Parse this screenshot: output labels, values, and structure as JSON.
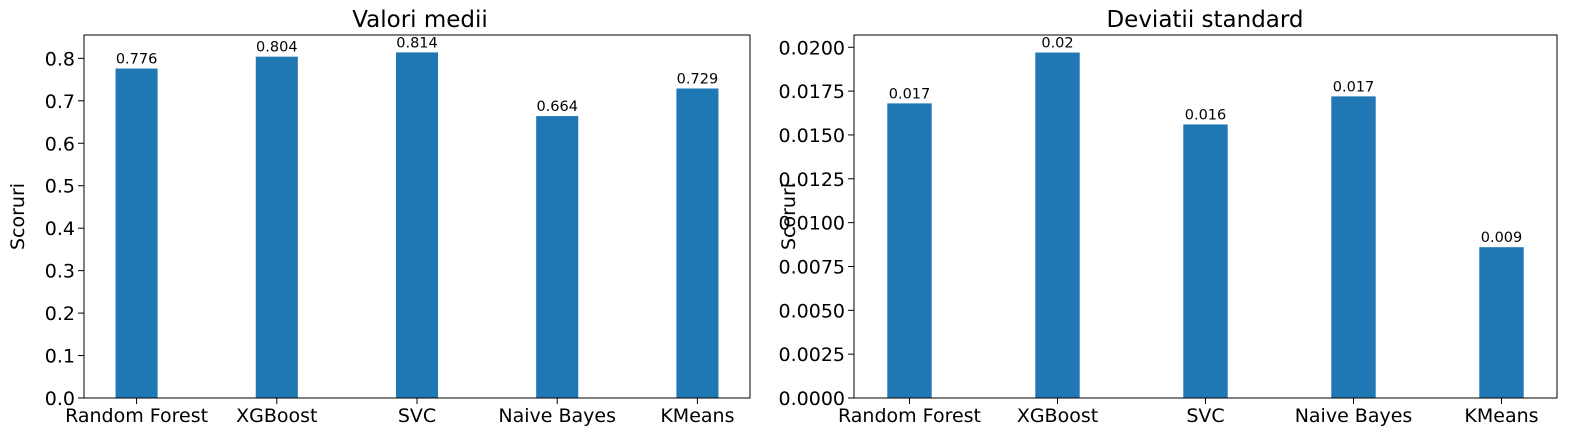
{
  "chart_data": [
    {
      "type": "bar",
      "title": "Valori medii",
      "xlabel": "",
      "ylabel": "Scoruri",
      "categories": [
        "Random Forest",
        "XGBoost",
        "SVC",
        "Naive Bayes",
        "KMeans"
      ],
      "values": [
        0.776,
        0.804,
        0.814,
        0.664,
        0.729
      ],
      "data_labels": [
        "0.776",
        "0.804",
        "0.814",
        "0.664",
        "0.729"
      ],
      "ylim": [
        0,
        0.855
      ],
      "yticks": [
        0.0,
        0.1,
        0.2,
        0.3,
        0.4,
        0.5,
        0.6,
        0.7,
        0.8
      ],
      "ytick_labels": [
        "0.0",
        "0.1",
        "0.2",
        "0.3",
        "0.4",
        "0.5",
        "0.6",
        "0.7",
        "0.8"
      ],
      "bar_color": "#1f77b4",
      "grid": false
    },
    {
      "type": "bar",
      "title": "Deviatii standard",
      "xlabel": "",
      "ylabel": "Scoruri",
      "categories": [
        "Random Forest",
        "XGBoost",
        "SVC",
        "Naive Bayes",
        "KMeans"
      ],
      "values": [
        0.0168,
        0.0197,
        0.0156,
        0.0172,
        0.0086
      ],
      "data_labels": [
        "0.017",
        "0.02",
        "0.016",
        "0.017",
        "0.009"
      ],
      "ylim": [
        0,
        0.0207
      ],
      "yticks": [
        0.0,
        0.0025,
        0.005,
        0.0075,
        0.01,
        0.0125,
        0.015,
        0.0175,
        0.02
      ],
      "ytick_labels": [
        "0.0000",
        "0.0025",
        "0.0050",
        "0.0075",
        "0.0100",
        "0.0125",
        "0.0150",
        "0.0175",
        "0.0200"
      ],
      "bar_color": "#1f77b4",
      "grid": false
    }
  ]
}
